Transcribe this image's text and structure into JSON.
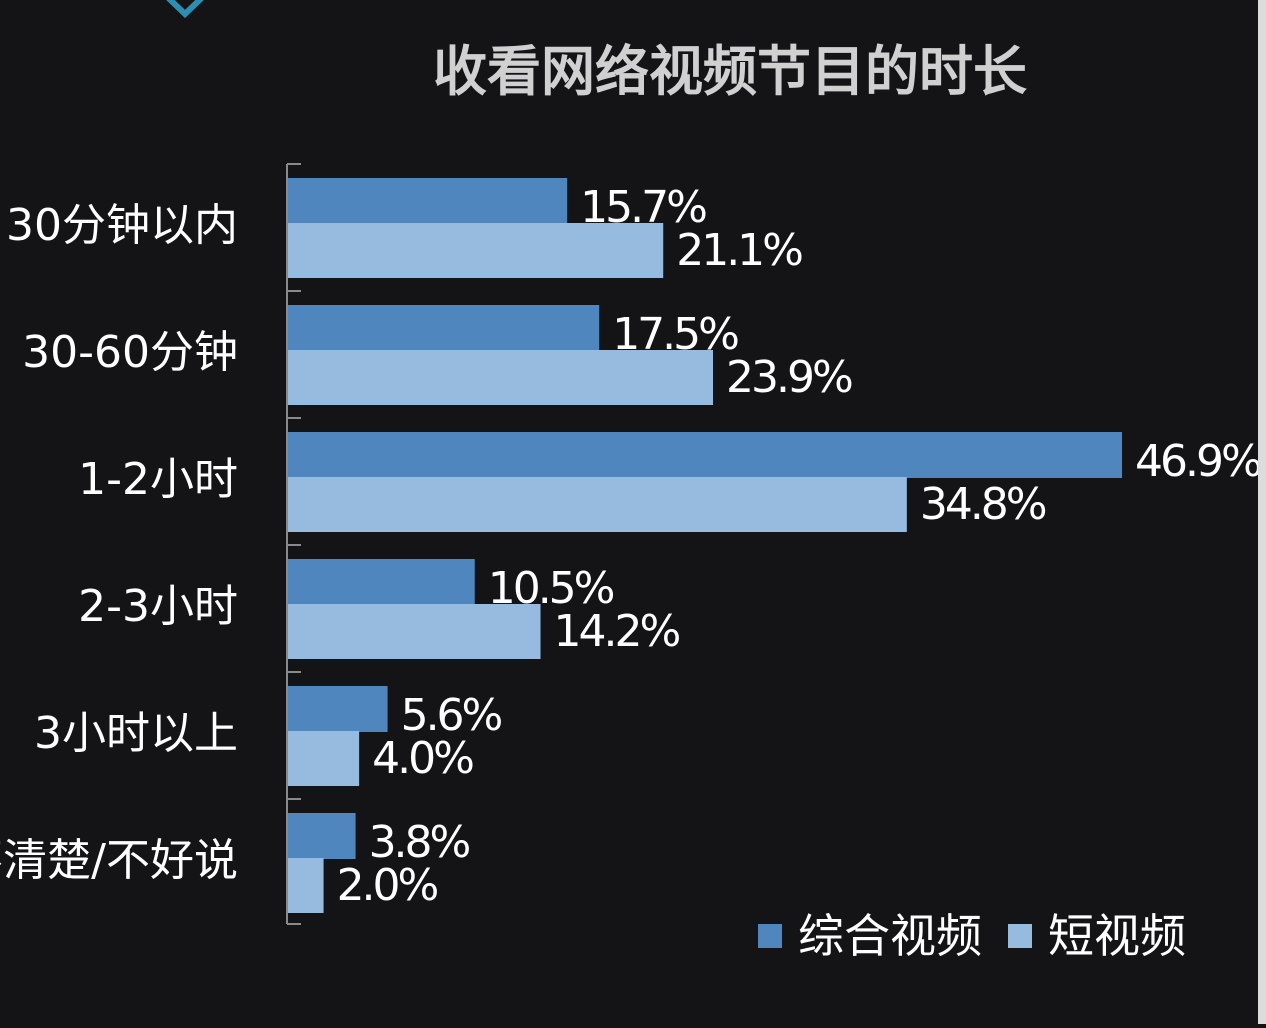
{
  "colors": {
    "background": "#141416",
    "series_1": "#4f86bd",
    "series_2": "#97badf",
    "title": "#d0d0d0",
    "text": "#ffffff",
    "axis": "#8a8a8a"
  },
  "chart_data": {
    "type": "bar",
    "orientation": "horizontal",
    "title": "收看网络视频节目的时长",
    "categories": [
      "30分钟以内",
      "30-60分钟",
      "1-2小时",
      "2-3小时",
      "3小时以上",
      "不清楚/不好说"
    ],
    "series": [
      {
        "name": "综合视频",
        "values": [
          15.7,
          17.5,
          46.9,
          10.5,
          5.6,
          3.8
        ],
        "labels": [
          "15.7%",
          "17.5%",
          "46.9%",
          "10.5%",
          "5.6%",
          "3.8%"
        ]
      },
      {
        "name": "短视频",
        "values": [
          21.1,
          23.9,
          34.8,
          14.2,
          4.0,
          2.0
        ],
        "labels": [
          "21.1%",
          "23.9%",
          "34.8%",
          "14.2%",
          "4.0%",
          "2.0%"
        ]
      }
    ],
    "xlim": [
      0,
      50
    ],
    "grid": false,
    "legend_position": "bottom-right"
  }
}
